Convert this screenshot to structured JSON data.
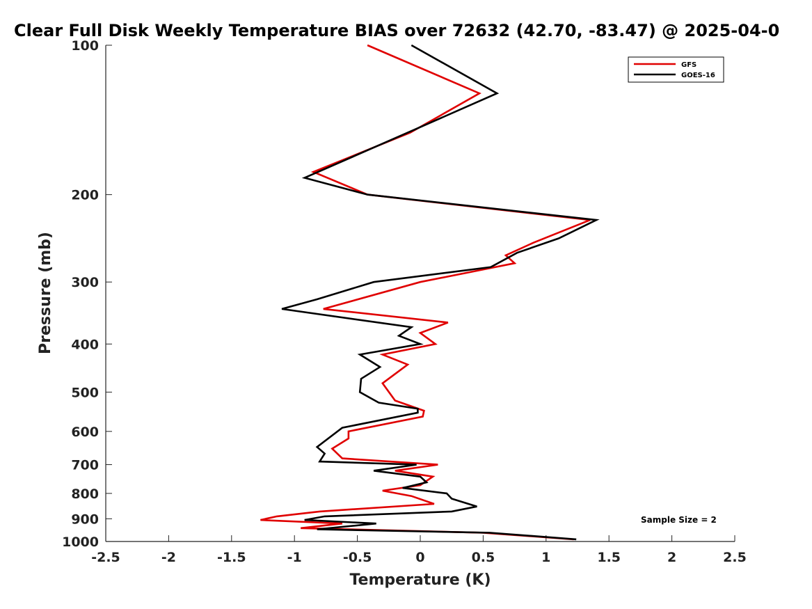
{
  "chart_data": {
    "type": "line",
    "title": "Clear Full Disk Weekly Temperature BIAS over 72632 (42.70, -83.47) @ 2025-04-0",
    "xlabel": "Temperature (K)",
    "ylabel": "Pressure (mb)",
    "xlim": [
      -2.5,
      2.5
    ],
    "ylim": [
      1000,
      100
    ],
    "y_scale": "log",
    "x_ticks": [
      -2.5,
      -2,
      -1.5,
      -1,
      -0.5,
      0,
      0.5,
      1,
      1.5,
      2,
      2.5
    ],
    "x_tick_labels": [
      "-2.5",
      "-2",
      "-1.5",
      "-1",
      "-0.5",
      "0",
      "0.5",
      "1",
      "1.5",
      "2",
      "2.5"
    ],
    "y_ticks": [
      100,
      200,
      300,
      400,
      500,
      600,
      700,
      800,
      900,
      1000
    ],
    "y_tick_labels": [
      "100",
      "200",
      "300",
      "400",
      "500",
      "600",
      "700",
      "800",
      "900",
      "1000"
    ],
    "legend_position": "top-right",
    "annotation": "Sample Size = 2",
    "series": [
      {
        "name": "GFS",
        "color": "#e00000",
        "points": [
          [
            -0.42,
            100
          ],
          [
            0.47,
            125
          ],
          [
            -0.08,
            150
          ],
          [
            -0.85,
            180
          ],
          [
            -0.42,
            200
          ],
          [
            1.35,
            225
          ],
          [
            0.9,
            250
          ],
          [
            0.68,
            265
          ],
          [
            0.75,
            275
          ],
          [
            0.0,
            300
          ],
          [
            -0.77,
            340
          ],
          [
            0.22,
            362
          ],
          [
            0.0,
            380
          ],
          [
            0.12,
            400
          ],
          [
            -0.3,
            420
          ],
          [
            -0.1,
            440
          ],
          [
            -0.3,
            480
          ],
          [
            -0.2,
            520
          ],
          [
            0.03,
            545
          ],
          [
            0.02,
            560
          ],
          [
            -0.57,
            600
          ],
          [
            -0.57,
            620
          ],
          [
            -0.7,
            650
          ],
          [
            -0.62,
            680
          ],
          [
            0.14,
            700
          ],
          [
            -0.2,
            720
          ],
          [
            0.1,
            740
          ],
          [
            0.0,
            770
          ],
          [
            -0.3,
            790
          ],
          [
            -0.07,
            810
          ],
          [
            0.11,
            840
          ],
          [
            -0.8,
            870
          ],
          [
            -1.14,
            890
          ],
          [
            -1.27,
            905
          ],
          [
            -0.62,
            920
          ],
          [
            -0.95,
            940
          ],
          [
            0.5,
            960
          ],
          [
            1.22,
            990
          ]
        ]
      },
      {
        "name": "GOES-16",
        "color": "#000000",
        "points": [
          [
            -0.07,
            100
          ],
          [
            0.61,
            125
          ],
          [
            -0.1,
            150
          ],
          [
            -0.92,
            185
          ],
          [
            -0.42,
            200
          ],
          [
            1.4,
            225
          ],
          [
            1.1,
            245
          ],
          [
            0.77,
            262
          ],
          [
            0.56,
            280
          ],
          [
            -0.37,
            300
          ],
          [
            -0.82,
            325
          ],
          [
            -1.1,
            340
          ],
          [
            -0.07,
            370
          ],
          [
            -0.17,
            385
          ],
          [
            0.0,
            400
          ],
          [
            -0.48,
            420
          ],
          [
            -0.32,
            445
          ],
          [
            -0.47,
            470
          ],
          [
            -0.48,
            500
          ],
          [
            -0.33,
            525
          ],
          [
            -0.02,
            540
          ],
          [
            -0.02,
            550
          ],
          [
            -0.62,
            590
          ],
          [
            -0.82,
            645
          ],
          [
            -0.76,
            665
          ],
          [
            -0.8,
            690
          ],
          [
            -0.03,
            700
          ],
          [
            -0.37,
            720
          ],
          [
            0.0,
            740
          ],
          [
            0.05,
            760
          ],
          [
            -0.14,
            780
          ],
          [
            0.21,
            800
          ],
          [
            0.25,
            820
          ],
          [
            0.45,
            850
          ],
          [
            0.25,
            870
          ],
          [
            -0.76,
            890
          ],
          [
            -0.92,
            905
          ],
          [
            -0.35,
            920
          ],
          [
            -0.82,
            945
          ],
          [
            0.55,
            960
          ],
          [
            1.24,
            990
          ]
        ]
      }
    ]
  }
}
